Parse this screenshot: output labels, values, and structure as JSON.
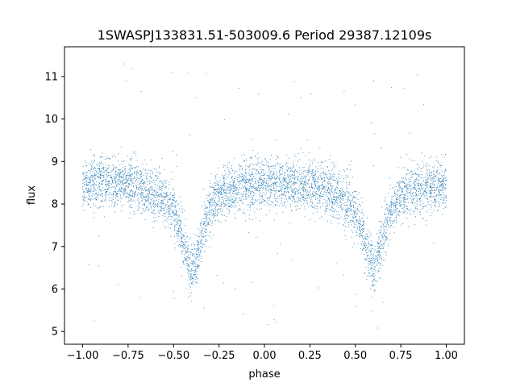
{
  "chart_data": {
    "type": "scatter",
    "title": "1SWASPJ133831.51-503009.6 Period 29387.12109s",
    "xlabel": "phase",
    "ylabel": "flux",
    "xlim": [
      -1.1,
      1.1
    ],
    "ylim": [
      4.7,
      11.7
    ],
    "xticks": [
      -1.0,
      -0.75,
      -0.5,
      -0.25,
      0.0,
      0.25,
      0.5,
      0.75,
      1.0
    ],
    "xtick_labels": [
      "−1.00",
      "−0.75",
      "−0.50",
      "−0.25",
      "0.00",
      "0.25",
      "0.50",
      "0.75",
      "1.00"
    ],
    "yticks": [
      5,
      6,
      7,
      8,
      9,
      10,
      11
    ],
    "ytick_labels": [
      "5",
      "6",
      "7",
      "8",
      "9",
      "10",
      "11"
    ],
    "grid": false,
    "marker_color": "#1f77b4",
    "light_curve": {
      "x": [
        -1.0,
        -0.9,
        -0.8,
        -0.7,
        -0.6,
        -0.55,
        -0.5,
        -0.47,
        -0.44,
        -0.42,
        -0.4,
        -0.38,
        -0.36,
        -0.33,
        -0.3,
        -0.25,
        -0.2,
        -0.1,
        0.0,
        0.1,
        0.2,
        0.3,
        0.4,
        0.45,
        0.5,
        0.53,
        0.56,
        0.58,
        0.6,
        0.62,
        0.64,
        0.67,
        0.7,
        0.75,
        0.8,
        0.9,
        1.0
      ],
      "y": [
        8.45,
        8.55,
        8.5,
        8.4,
        8.25,
        8.1,
        7.85,
        7.5,
        7.0,
        6.65,
        6.45,
        6.6,
        6.95,
        7.5,
        7.95,
        8.2,
        8.3,
        8.45,
        8.5,
        8.5,
        8.45,
        8.4,
        8.2,
        8.05,
        7.8,
        7.5,
        7.0,
        6.65,
        6.45,
        6.6,
        6.95,
        7.5,
        7.9,
        8.2,
        8.3,
        8.4,
        8.45
      ]
    }
  }
}
